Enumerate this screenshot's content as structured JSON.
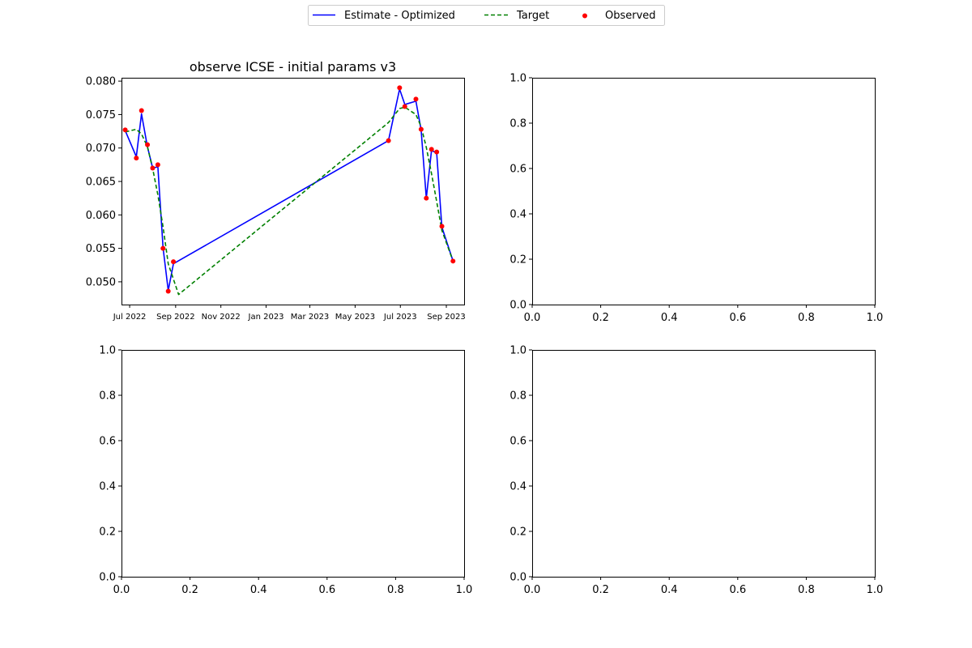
{
  "legend": {
    "placement": "top-center",
    "items": [
      {
        "label": "Estimate - Optimized",
        "color": "#0000ff",
        "style": "solid-line"
      },
      {
        "label": "Target",
        "color": "#008000",
        "style": "dashed-line"
      },
      {
        "label": "Observed",
        "color": "#ff0000",
        "style": "dot"
      }
    ]
  },
  "chart_data": [
    {
      "type": "line",
      "title": "observe ICSE - initial params v3",
      "xlabel": "",
      "ylabel": "",
      "x_axis_type": "date",
      "xlim": [
        "2022-06-20",
        "2023-09-25"
      ],
      "ylim": [
        0.0466,
        0.0805
      ],
      "x_ticks": [
        {
          "date": "2022-07-01",
          "label": "Jul 2022"
        },
        {
          "date": "2022-09-01",
          "label": "Sep 2022"
        },
        {
          "date": "2022-11-01",
          "label": "Nov 2022"
        },
        {
          "date": "2023-01-01",
          "label": "Jan 2023"
        },
        {
          "date": "2023-03-01",
          "label": "Mar 2023"
        },
        {
          "date": "2023-05-01",
          "label": "May 2023"
        },
        {
          "date": "2023-07-01",
          "label": "Jul 2023"
        },
        {
          "date": "2023-09-01",
          "label": "Sep 2023"
        }
      ],
      "y_ticks": [
        {
          "value": 0.05,
          "label": "0.050"
        },
        {
          "value": 0.055,
          "label": "0.055"
        },
        {
          "value": 0.06,
          "label": "0.060"
        },
        {
          "value": 0.065,
          "label": "0.065"
        },
        {
          "value": 0.07,
          "label": "0.070"
        },
        {
          "value": 0.075,
          "label": "0.075"
        },
        {
          "value": 0.08,
          "label": "0.080"
        }
      ],
      "grid": false,
      "series": [
        {
          "name": "Estimate - Optimized",
          "color": "#0000ff",
          "style": "solid",
          "x": [
            "2022-06-25",
            "2022-07-10",
            "2022-07-17",
            "2022-07-25",
            "2022-08-01",
            "2022-08-08",
            "2022-08-15",
            "2022-08-22",
            "2022-08-29",
            "2023-06-15",
            "2023-06-30",
            "2023-07-07",
            "2023-07-22",
            "2023-07-29",
            "2023-08-05",
            "2023-08-12",
            "2023-08-19",
            "2023-08-26",
            "2023-09-10"
          ],
          "y": [
            0.0726,
            0.0687,
            0.0751,
            0.0702,
            0.067,
            0.0672,
            0.0551,
            0.0487,
            0.0527,
            0.0711,
            0.0788,
            0.0765,
            0.077,
            0.0727,
            0.0625,
            0.0696,
            0.0693,
            0.0582,
            0.0531
          ]
        },
        {
          "name": "Target",
          "color": "#008000",
          "style": "dashed",
          "x": [
            "2022-06-25",
            "2022-07-10",
            "2022-07-17",
            "2022-07-25",
            "2022-08-01",
            "2022-08-08",
            "2022-08-15",
            "2022-08-22",
            "2022-09-05",
            "2023-06-15",
            "2023-06-30",
            "2023-07-07",
            "2023-07-22",
            "2023-07-29",
            "2023-08-05",
            "2023-08-12",
            "2023-08-19",
            "2023-08-26",
            "2023-09-10"
          ],
          "y": [
            0.0724,
            0.0728,
            0.0721,
            0.0702,
            0.0669,
            0.063,
            0.0582,
            0.0527,
            0.0481,
            0.0738,
            0.0759,
            0.0761,
            0.075,
            0.0732,
            0.0701,
            0.0662,
            0.062,
            0.0577,
            0.0531
          ]
        },
        {
          "name": "Observed",
          "color": "#ff0000",
          "style": "markers",
          "x": [
            "2022-06-25",
            "2022-07-10",
            "2022-07-17",
            "2022-07-25",
            "2022-08-01",
            "2022-08-08",
            "2022-08-15",
            "2022-08-22",
            "2022-08-29",
            "2023-06-15",
            "2023-06-30",
            "2023-07-07",
            "2023-07-22",
            "2023-07-29",
            "2023-08-05",
            "2023-08-12",
            "2023-08-19",
            "2023-08-26",
            "2023-09-10"
          ],
          "y": [
            0.0727,
            0.0685,
            0.0756,
            0.0705,
            0.067,
            0.0675,
            0.055,
            0.0486,
            0.053,
            0.0711,
            0.079,
            0.0762,
            0.0773,
            0.0728,
            0.0625,
            0.0698,
            0.0694,
            0.0583,
            0.0531
          ]
        }
      ]
    },
    {
      "type": "line",
      "title": "",
      "xlim": [
        0,
        1
      ],
      "ylim": [
        0,
        1
      ],
      "x_ticks": [
        "0.0",
        "0.2",
        "0.4",
        "0.6",
        "0.8",
        "1.0"
      ],
      "y_ticks": [
        "0.0",
        "0.2",
        "0.4",
        "0.6",
        "0.8",
        "1.0"
      ],
      "series": []
    },
    {
      "type": "line",
      "title": "",
      "xlim": [
        0,
        1
      ],
      "ylim": [
        0,
        1
      ],
      "x_ticks": [
        "0.0",
        "0.2",
        "0.4",
        "0.6",
        "0.8",
        "1.0"
      ],
      "y_ticks": [
        "0.0",
        "0.2",
        "0.4",
        "0.6",
        "0.8",
        "1.0"
      ],
      "series": []
    },
    {
      "type": "line",
      "title": "",
      "xlim": [
        0,
        1
      ],
      "ylim": [
        0,
        1
      ],
      "x_ticks": [
        "0.0",
        "0.2",
        "0.4",
        "0.6",
        "0.8",
        "1.0"
      ],
      "y_ticks": [
        "0.0",
        "0.2",
        "0.4",
        "0.6",
        "0.8",
        "1.0"
      ],
      "series": []
    }
  ]
}
